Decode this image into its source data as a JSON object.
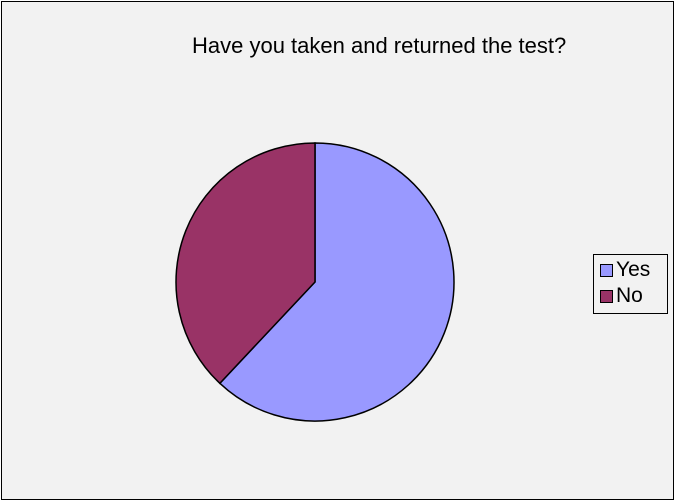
{
  "chart_data": {
    "type": "pie",
    "title": "Have you taken and returned the test?",
    "categories": [
      "Yes",
      "No"
    ],
    "values": [
      62,
      38
    ],
    "colors": [
      "#9999ff",
      "#993366"
    ],
    "legend_position": "right",
    "start_angle_deg": 0,
    "direction": "clockwise"
  }
}
